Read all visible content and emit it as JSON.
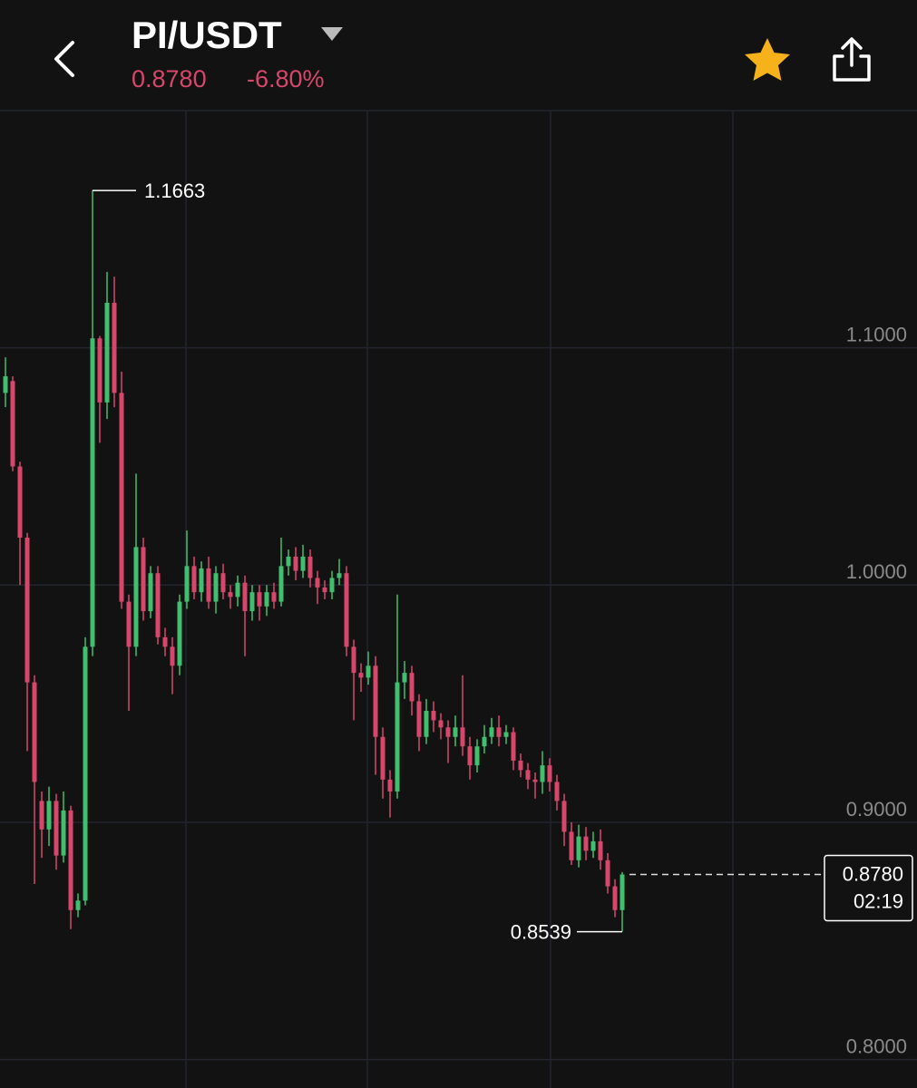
{
  "header": {
    "pair": "PI/USDT",
    "price": "0.8780",
    "change": "-6.80%"
  },
  "chart_data": {
    "type": "candlestick",
    "up_color": "#3fbf6f",
    "down_color": "#d6476b",
    "open": [
      1.081,
      1.086,
      1.05,
      1.02,
      0.959,
      0.909,
      0.897,
      0.909,
      0.886,
      0.905,
      0.863,
      0.867,
      0.974,
      1.104,
      1.077,
      1.119,
      1.081,
      0.993,
      0.974,
      1.016,
      0.989,
      1.005,
      0.978,
      0.974,
      0.966,
      0.993,
      1.008,
      0.997,
      1.007,
      0.993,
      1.005,
      0.997,
      0.995,
      1.001,
      0.989,
      0.997,
      0.991,
      0.997,
      0.993,
      1.008,
      1.012,
      1.006,
      1.012,
      1.003,
      0.999,
      0.997,
      1.003,
      1.005,
      0.974,
      0.963,
      0.961,
      0.966,
      0.936,
      0.918,
      0.913,
      0.959,
      0.963,
      0.951,
      0.936,
      0.947,
      0.943,
      0.94,
      0.936,
      0.94,
      0.932,
      0.924,
      0.932,
      0.936,
      0.94,
      0.936,
      0.938,
      0.926,
      0.922,
      0.918,
      0.917,
      0.924,
      0.917,
      0.909,
      0.896,
      0.884,
      0.894,
      0.888,
      0.892,
      0.884,
      0.873,
      0.863
    ],
    "high": [
      1.096,
      1.088,
      1.052,
      1.022,
      0.962,
      0.913,
      0.915,
      0.912,
      0.913,
      0.907,
      0.87,
      0.978,
      1.1663,
      1.105,
      1.132,
      1.13,
      1.09,
      0.996,
      1.047,
      1.02,
      1.008,
      1.008,
      0.982,
      0.978,
      0.996,
      1.023,
      1.012,
      1.01,
      1.012,
      1.008,
      1.009,
      1.0,
      1.004,
      1.004,
      1.0,
      1.0,
      1.0,
      1.001,
      1.02,
      1.015,
      1.016,
      1.017,
      1.015,
      1.006,
      1.002,
      1.006,
      1.011,
      1.008,
      0.977,
      0.967,
      0.972,
      0.97,
      0.94,
      0.922,
      0.996,
      0.968,
      0.966,
      0.954,
      0.952,
      0.951,
      0.946,
      0.943,
      0.945,
      0.962,
      0.936,
      0.935,
      0.941,
      0.944,
      0.945,
      0.941,
      0.94,
      0.929,
      0.925,
      0.921,
      0.93,
      0.927,
      0.92,
      0.912,
      0.9,
      0.899,
      0.898,
      0.896,
      0.897,
      0.887,
      0.876,
      0.879
    ],
    "low": [
      1.075,
      1.048,
      1.0,
      0.93,
      0.874,
      0.885,
      0.89,
      0.88,
      0.883,
      0.855,
      0.86,
      0.865,
      0.97,
      1.06,
      1.07,
      1.075,
      0.99,
      0.947,
      0.97,
      0.985,
      0.986,
      0.975,
      0.97,
      0.954,
      0.962,
      0.99,
      0.994,
      0.993,
      0.99,
      0.988,
      0.994,
      0.99,
      0.991,
      0.97,
      0.985,
      0.985,
      0.987,
      0.99,
      0.991,
      1.004,
      1.002,
      1.003,
      0.999,
      0.992,
      0.994,
      0.994,
      1.0,
      0.97,
      0.943,
      0.955,
      0.958,
      0.92,
      0.91,
      0.902,
      0.91,
      0.952,
      0.945,
      0.93,
      0.933,
      0.938,
      0.935,
      0.925,
      0.932,
      0.928,
      0.918,
      0.921,
      0.929,
      0.933,
      0.932,
      0.933,
      0.922,
      0.919,
      0.914,
      0.91,
      0.912,
      0.913,
      0.905,
      0.89,
      0.882,
      0.881,
      0.884,
      0.885,
      0.88,
      0.87,
      0.86,
      0.8539
    ],
    "close": [
      1.088,
      1.05,
      1.02,
      0.959,
      0.917,
      0.897,
      0.909,
      0.886,
      0.905,
      0.863,
      0.867,
      0.974,
      1.104,
      1.077,
      1.119,
      1.081,
      0.993,
      0.974,
      1.016,
      0.989,
      1.005,
      0.978,
      0.974,
      0.966,
      0.993,
      1.008,
      0.997,
      1.007,
      0.993,
      1.005,
      0.997,
      0.995,
      1.001,
      0.989,
      0.997,
      0.991,
      0.997,
      0.993,
      1.008,
      1.012,
      1.006,
      1.012,
      1.003,
      0.999,
      0.997,
      1.003,
      1.005,
      0.974,
      0.963,
      0.961,
      0.966,
      0.936,
      0.918,
      0.913,
      0.959,
      0.963,
      0.951,
      0.936,
      0.947,
      0.943,
      0.94,
      0.936,
      0.94,
      0.932,
      0.924,
      0.932,
      0.936,
      0.94,
      0.936,
      0.938,
      0.926,
      0.922,
      0.918,
      0.917,
      0.924,
      0.917,
      0.909,
      0.896,
      0.884,
      0.894,
      0.888,
      0.892,
      0.884,
      0.873,
      0.863,
      0.878
    ],
    "ylim": [
      0.788,
      1.2
    ],
    "yticks": [
      {
        "value": 0.8,
        "label": "0.8000"
      },
      {
        "value": 0.9,
        "label": "0.9000"
      },
      {
        "value": 1.0,
        "label": "1.0000"
      },
      {
        "value": 1.1,
        "label": "1.1000"
      }
    ],
    "grid": true,
    "max_label": 1.1663,
    "min_label": 0.8539,
    "last_price": {
      "value": 0.878,
      "label": "0.8780"
    },
    "countdown": "02:19"
  }
}
